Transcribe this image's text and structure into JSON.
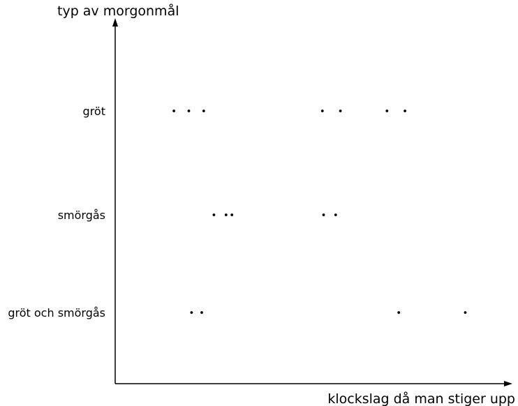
{
  "chart_data": {
    "type": "scatter",
    "title": "",
    "xlabel": "klockslag då man stiger upp",
    "ylabel": "typ av morgonmål",
    "x_ticks_shown": false,
    "grid": false,
    "legend": "none",
    "xlim": [
      0,
      100
    ],
    "categories": [
      "gröt",
      "smörgås",
      "gröt och smörgås"
    ],
    "points": [
      {
        "category": "gröt",
        "x": 15
      },
      {
        "category": "gröt",
        "x": 18.8
      },
      {
        "category": "gröt",
        "x": 22.6
      },
      {
        "category": "gröt",
        "x": 52.9
      },
      {
        "category": "gröt",
        "x": 57.5
      },
      {
        "category": "gröt",
        "x": 69.4
      },
      {
        "category": "gröt",
        "x": 74
      },
      {
        "category": "smörgås",
        "x": 25.2
      },
      {
        "category": "smörgås",
        "x": 28.3
      },
      {
        "category": "smörgås",
        "x": 29.8
      },
      {
        "category": "smörgås",
        "x": 53.2
      },
      {
        "category": "smörgås",
        "x": 56.3
      },
      {
        "category": "gröt och smörgås",
        "x": 19.5
      },
      {
        "category": "gröt och smörgås",
        "x": 22.1
      },
      {
        "category": "gröt och smörgås",
        "x": 72.4
      },
      {
        "category": "gröt och smörgås",
        "x": 89.4
      }
    ],
    "colors": {
      "axis": "#000000",
      "points": "#000000"
    }
  }
}
